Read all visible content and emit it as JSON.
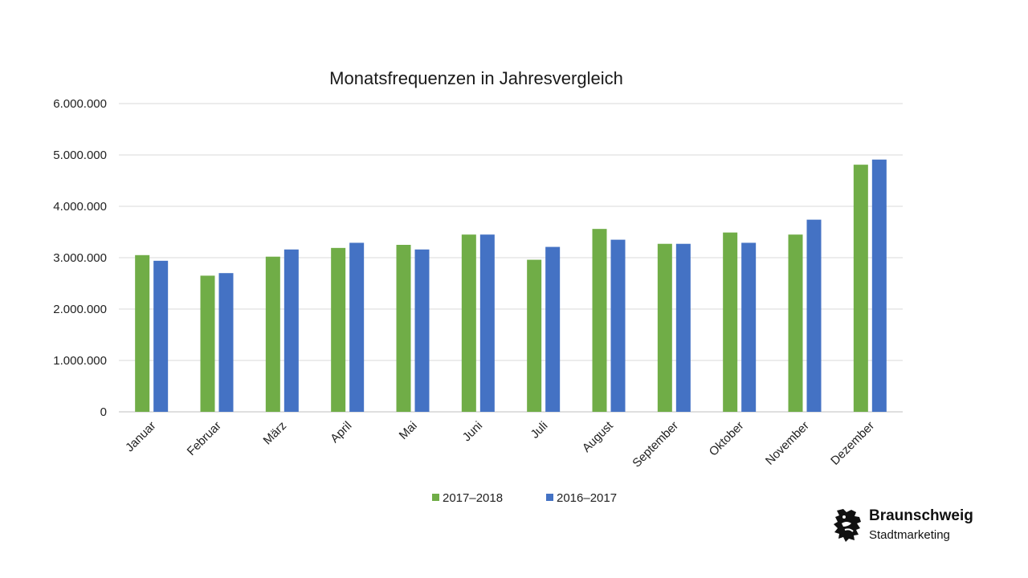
{
  "chart_data": {
    "type": "bar",
    "title": "Monatsfrequenzen in Jahresvergleich",
    "categories": [
      "Januar",
      "Februar",
      "März",
      "April",
      "Mai",
      "Juni",
      "Juli",
      "August",
      "September",
      "Oktober",
      "November",
      "Dezember"
    ],
    "series": [
      {
        "name": "2017–2018",
        "color": "#70ad47",
        "values": [
          3050000,
          2650000,
          3020000,
          3190000,
          3250000,
          3450000,
          2960000,
          3560000,
          3270000,
          3490000,
          3450000,
          4810000
        ]
      },
      {
        "name": "2016–2017",
        "color": "#4472c4",
        "values": [
          2940000,
          2700000,
          3160000,
          3290000,
          3160000,
          3450000,
          3210000,
          3350000,
          3270000,
          3290000,
          3740000,
          4910000
        ]
      }
    ],
    "ylim": [
      0,
      6000000
    ],
    "yticks": [
      0,
      1000000,
      2000000,
      3000000,
      4000000,
      5000000,
      6000000
    ],
    "ytick_labels": [
      "0",
      "1.000.000",
      "2.000.000",
      "3.000.000",
      "4.000.000",
      "5.000.000",
      "6.000.000"
    ],
    "xlabel": "",
    "ylabel": "",
    "grid": true,
    "legend_position": "bottom"
  },
  "logo": {
    "name": "Braunschweig",
    "subtitle": "Stadtmarketing"
  }
}
